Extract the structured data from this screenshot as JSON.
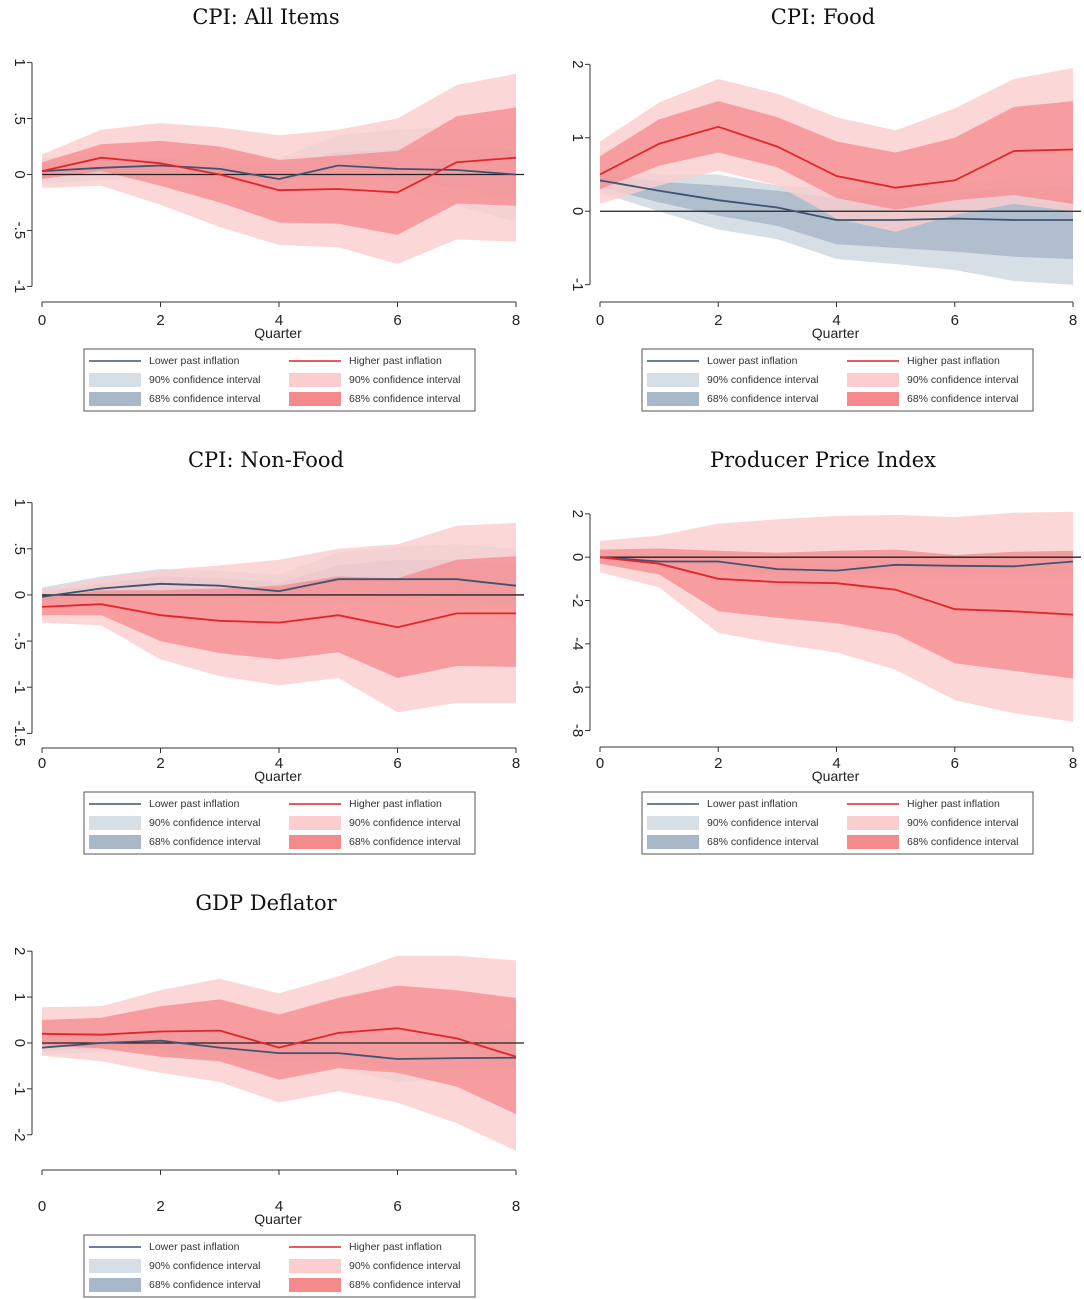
{
  "colors": {
    "lower_line": "#3f5470",
    "lower_ci90": "#d6dee6",
    "lower_ci68": "#a9b8c8",
    "higher_line": "#e0252b",
    "higher_ci90": "#fbcdcd",
    "higher_ci68": "#f58a8d",
    "zero_line": "#222222"
  },
  "legend": {
    "lower_line": "Lower past inflation",
    "lower_ci90": "90% confidence interval",
    "lower_ci68": "68% confidence interval",
    "higher_line": "Higher past inflation",
    "higher_ci90": "90% confidence interval",
    "higher_ci68": "68% confidence interval"
  },
  "chart_data": [
    {
      "type": "area",
      "title": "CPI: All Items",
      "xlabel": "Quarter",
      "ylabel": "",
      "x": [
        0,
        1,
        2,
        3,
        4,
        5,
        6,
        7,
        8
      ],
      "xticks": [
        0,
        2,
        4,
        6,
        8
      ],
      "ylim": [
        -1.05,
        1.05
      ],
      "yticks": [
        -1,
        -0.5,
        0,
        0.5,
        1
      ],
      "ytick_labels": [
        "-1",
        "-.5",
        "0",
        ".5",
        "1"
      ],
      "series": [
        {
          "name": "Lower past inflation",
          "values": [
            0.03,
            0.06,
            0.08,
            0.05,
            -0.04,
            0.08,
            0.05,
            0.04,
            0.0
          ],
          "ci90": [
            [
              -0.08,
              0.14
            ],
            [
              -0.05,
              0.2
            ],
            [
              -0.04,
              0.22
            ],
            [
              -0.06,
              0.19
            ],
            [
              -0.14,
              0.14
            ],
            [
              -0.08,
              0.35
            ],
            [
              -0.14,
              0.4
            ],
            [
              -0.28,
              0.43
            ],
            [
              -0.42,
              0.42
            ]
          ],
          "ci68": [
            [
              -0.03,
              0.09
            ],
            [
              0.0,
              0.13
            ],
            [
              0.01,
              0.15
            ],
            [
              -0.01,
              0.12
            ],
            [
              -0.09,
              0.08
            ],
            [
              -0.0,
              0.2
            ],
            [
              -0.04,
              0.22
            ],
            [
              -0.12,
              0.23
            ],
            [
              -0.22,
              0.22
            ]
          ]
        },
        {
          "name": "Higher past inflation",
          "values": [
            0.03,
            0.15,
            0.1,
            0.0,
            -0.14,
            -0.13,
            -0.16,
            0.11,
            0.15
          ],
          "ci90": [
            [
              -0.12,
              0.18
            ],
            [
              -0.1,
              0.4
            ],
            [
              -0.27,
              0.46
            ],
            [
              -0.47,
              0.42
            ],
            [
              -0.63,
              0.35
            ],
            [
              -0.65,
              0.4
            ],
            [
              -0.8,
              0.5
            ],
            [
              -0.58,
              0.8
            ],
            [
              -0.6,
              0.9
            ]
          ],
          "ci68": [
            [
              -0.04,
              0.11
            ],
            [
              0.03,
              0.27
            ],
            [
              -0.1,
              0.3
            ],
            [
              -0.25,
              0.25
            ],
            [
              -0.43,
              0.13
            ],
            [
              -0.44,
              0.17
            ],
            [
              -0.54,
              0.21
            ],
            [
              -0.26,
              0.52
            ],
            [
              -0.28,
              0.6
            ]
          ]
        }
      ]
    },
    {
      "type": "area",
      "title": "CPI: Food",
      "xlabel": "Quarter",
      "ylabel": "",
      "x": [
        0,
        1,
        2,
        3,
        4,
        5,
        6,
        7,
        8
      ],
      "xticks": [
        0,
        2,
        4,
        6,
        8
      ],
      "ylim": [
        -1.1,
        2.1
      ],
      "yticks": [
        -1,
        0,
        1,
        2
      ],
      "ytick_labels": [
        "-1",
        "0",
        "1",
        "2"
      ],
      "series": [
        {
          "name": "Lower past inflation",
          "values": [
            0.42,
            0.28,
            0.15,
            0.05,
            -0.12,
            -0.12,
            -0.1,
            -0.12,
            -0.12
          ],
          "ci90": [
            [
              0.25,
              0.62
            ],
            [
              0.0,
              0.5
            ],
            [
              -0.25,
              0.5
            ],
            [
              -0.38,
              0.35
            ],
            [
              -0.65,
              0.3
            ],
            [
              -0.72,
              0.3
            ],
            [
              -0.8,
              0.38
            ],
            [
              -0.95,
              0.45
            ],
            [
              -1.0,
              0.45
            ]
          ],
          "ci68": [
            [
              0.33,
              0.52
            ],
            [
              0.12,
              0.4
            ],
            [
              -0.06,
              0.35
            ],
            [
              -0.2,
              0.28
            ],
            [
              -0.45,
              0.18
            ],
            [
              -0.5,
              0.2
            ],
            [
              -0.55,
              0.25
            ],
            [
              -0.62,
              0.32
            ],
            [
              -0.65,
              0.35
            ]
          ]
        },
        {
          "name": "Higher past inflation",
          "values": [
            0.5,
            0.92,
            1.15,
            0.88,
            0.48,
            0.32,
            0.42,
            0.82,
            0.84
          ],
          "ci90": [
            [
              0.1,
              0.95
            ],
            [
              0.35,
              1.48
            ],
            [
              0.55,
              1.8
            ],
            [
              0.35,
              1.6
            ],
            [
              -0.1,
              1.28
            ],
            [
              -0.28,
              1.1
            ],
            [
              -0.05,
              1.4
            ],
            [
              0.1,
              1.8
            ],
            [
              0.0,
              1.95
            ]
          ],
          "ci68": [
            [
              0.3,
              0.75
            ],
            [
              0.62,
              1.25
            ],
            [
              0.8,
              1.5
            ],
            [
              0.6,
              1.28
            ],
            [
              0.18,
              0.95
            ],
            [
              0.02,
              0.8
            ],
            [
              0.15,
              1.0
            ],
            [
              0.22,
              1.42
            ],
            [
              0.1,
              1.5
            ]
          ]
        }
      ]
    },
    {
      "type": "area",
      "title": "CPI: Non-Food",
      "xlabel": "Quarter",
      "ylabel": "",
      "x": [
        0,
        1,
        2,
        3,
        4,
        5,
        6,
        7,
        8
      ],
      "xticks": [
        0,
        2,
        4,
        6,
        8
      ],
      "ylim": [
        -1.55,
        1.05
      ],
      "yticks": [
        -1.5,
        -1,
        -0.5,
        0,
        0.5,
        1
      ],
      "ytick_labels": [
        "-1.5",
        "-1",
        "-.5",
        "0",
        ".5",
        "1"
      ],
      "series": [
        {
          "name": "Lower past inflation",
          "values": [
            -0.02,
            0.07,
            0.12,
            0.1,
            0.04,
            0.17,
            0.17,
            0.17,
            0.1
          ],
          "ci90": [
            [
              -0.12,
              0.08
            ],
            [
              -0.05,
              0.2
            ],
            [
              -0.04,
              0.28
            ],
            [
              -0.06,
              0.26
            ],
            [
              -0.1,
              0.22
            ],
            [
              -0.08,
              0.46
            ],
            [
              -0.1,
              0.52
            ],
            [
              -0.18,
              0.55
            ],
            [
              -0.3,
              0.5
            ]
          ],
          "ci68": [
            [
              -0.07,
              0.03
            ],
            [
              0.02,
              0.12
            ],
            [
              0.04,
              0.2
            ],
            [
              0.02,
              0.18
            ],
            [
              -0.04,
              0.13
            ],
            [
              0.04,
              0.32
            ],
            [
              0.02,
              0.38
            ],
            [
              -0.03,
              0.38
            ],
            [
              -0.12,
              0.32
            ]
          ]
        },
        {
          "name": "Higher past inflation",
          "values": [
            -0.13,
            -0.1,
            -0.22,
            -0.28,
            -0.3,
            -0.22,
            -0.35,
            -0.2,
            -0.2
          ],
          "ci90": [
            [
              -0.3,
              0.05
            ],
            [
              -0.33,
              0.18
            ],
            [
              -0.7,
              0.27
            ],
            [
              -0.88,
              0.32
            ],
            [
              -0.98,
              0.38
            ],
            [
              -0.9,
              0.5
            ],
            [
              -1.27,
              0.55
            ],
            [
              -1.17,
              0.75
            ],
            [
              -1.17,
              0.78
            ]
          ],
          "ci68": [
            [
              -0.22,
              -0.03
            ],
            [
              -0.22,
              0.05
            ],
            [
              -0.5,
              0.05
            ],
            [
              -0.63,
              0.07
            ],
            [
              -0.7,
              0.1
            ],
            [
              -0.62,
              0.2
            ],
            [
              -0.9,
              0.18
            ],
            [
              -0.77,
              0.38
            ],
            [
              -0.78,
              0.42
            ]
          ]
        }
      ]
    },
    {
      "type": "area",
      "title": "Producer Price Index",
      "xlabel": "Quarter",
      "ylabel": "",
      "x": [
        0,
        1,
        2,
        3,
        4,
        5,
        6,
        7,
        8
      ],
      "xticks": [
        0,
        2,
        4,
        6,
        8
      ],
      "ylim": [
        -8.3,
        2.5
      ],
      "yticks": [
        -8,
        -6,
        -4,
        -2,
        0,
        2
      ],
      "ytick_labels": [
        "-8",
        "-6",
        "-4",
        "-2",
        "0",
        "2"
      ],
      "series": [
        {
          "name": "Lower past inflation",
          "values": [
            0.0,
            -0.2,
            -0.2,
            -0.55,
            -0.62,
            -0.35,
            -0.4,
            -0.42,
            -0.2
          ],
          "ci90": [
            [
              -0.3,
              0.1
            ],
            [
              -0.55,
              0.1
            ],
            [
              -0.6,
              0.1
            ],
            [
              -1.0,
              0.0
            ],
            [
              -1.1,
              -0.05
            ],
            [
              -0.95,
              0.1
            ],
            [
              -1.0,
              0.1
            ],
            [
              -1.05,
              0.25
            ],
            [
              -1.0,
              0.3
            ]
          ],
          "ci68": [
            [
              -0.15,
              0.05
            ],
            [
              -0.38,
              0.0
            ],
            [
              -0.4,
              0.0
            ],
            [
              -0.8,
              -0.25
            ],
            [
              -0.85,
              -0.3
            ],
            [
              -0.7,
              -0.05
            ],
            [
              -0.75,
              -0.05
            ],
            [
              -0.78,
              0.0
            ],
            [
              -0.65,
              0.15
            ]
          ]
        },
        {
          "name": "Higher past inflation",
          "values": [
            0.0,
            -0.3,
            -1.0,
            -1.15,
            -1.2,
            -1.5,
            -2.4,
            -2.5,
            -2.65
          ],
          "ci90": [
            [
              -0.7,
              0.75
            ],
            [
              -1.4,
              1.0
            ],
            [
              -3.5,
              1.55
            ],
            [
              -4.0,
              1.75
            ],
            [
              -4.4,
              1.9
            ],
            [
              -5.2,
              1.95
            ],
            [
              -6.6,
              1.85
            ],
            [
              -7.2,
              2.05
            ],
            [
              -7.6,
              2.1
            ]
          ],
          "ci68": [
            [
              -0.3,
              0.35
            ],
            [
              -0.8,
              0.4
            ],
            [
              -2.5,
              0.3
            ],
            [
              -2.8,
              0.2
            ],
            [
              -3.05,
              0.3
            ],
            [
              -3.55,
              0.35
            ],
            [
              -4.9,
              0.1
            ],
            [
              -5.25,
              0.25
            ],
            [
              -5.6,
              0.3
            ]
          ]
        }
      ]
    },
    {
      "type": "area",
      "title": "GDP Deflator",
      "xlabel": "Quarter",
      "ylabel": "",
      "x": [
        0,
        1,
        2,
        3,
        4,
        5,
        6,
        7,
        8
      ],
      "xticks": [
        0,
        2,
        4,
        6,
        8
      ],
      "ylim": [
        -2.55,
        2.2
      ],
      "yticks": [
        -2,
        -1,
        0,
        1,
        2
      ],
      "ytick_labels": [
        "-2",
        "-1",
        "0",
        "1",
        "2"
      ],
      "series": [
        {
          "name": "Lower past inflation",
          "values": [
            -0.1,
            0.0,
            0.05,
            -0.1,
            -0.22,
            -0.22,
            -0.35,
            -0.33,
            -0.32
          ],
          "ci90": [
            [
              -0.25,
              0.05
            ],
            [
              -0.2,
              0.2
            ],
            [
              -0.25,
              0.35
            ],
            [
              -0.45,
              0.3
            ],
            [
              -0.6,
              0.2
            ],
            [
              -0.55,
              0.2
            ],
            [
              -0.85,
              0.1
            ],
            [
              -0.8,
              0.25
            ],
            [
              -0.8,
              0.3
            ]
          ],
          "ci68": [
            [
              -0.18,
              -0.02
            ],
            [
              -0.1,
              0.1
            ],
            [
              -0.12,
              0.2
            ],
            [
              -0.3,
              0.12
            ],
            [
              -0.42,
              0.0
            ],
            [
              -0.38,
              -0.02
            ],
            [
              -0.6,
              -0.1
            ],
            [
              -0.57,
              -0.05
            ],
            [
              -0.55,
              -0.05
            ]
          ]
        },
        {
          "name": "Higher past inflation",
          "values": [
            0.2,
            0.18,
            0.25,
            0.27,
            -0.1,
            0.22,
            0.32,
            0.1,
            -0.3
          ],
          "ci90": [
            [
              -0.28,
              0.78
            ],
            [
              -0.4,
              0.8
            ],
            [
              -0.65,
              1.15
            ],
            [
              -0.85,
              1.4
            ],
            [
              -1.3,
              1.08
            ],
            [
              -1.05,
              1.45
            ],
            [
              -1.3,
              1.9
            ],
            [
              -1.75,
              1.9
            ],
            [
              -2.35,
              1.8
            ]
          ],
          "ci68": [
            [
              -0.05,
              0.5
            ],
            [
              -0.12,
              0.55
            ],
            [
              -0.3,
              0.8
            ],
            [
              -0.4,
              0.95
            ],
            [
              -0.8,
              0.62
            ],
            [
              -0.55,
              0.98
            ],
            [
              -0.65,
              1.25
            ],
            [
              -0.95,
              1.15
            ],
            [
              -1.55,
              0.98
            ]
          ]
        }
      ]
    }
  ]
}
